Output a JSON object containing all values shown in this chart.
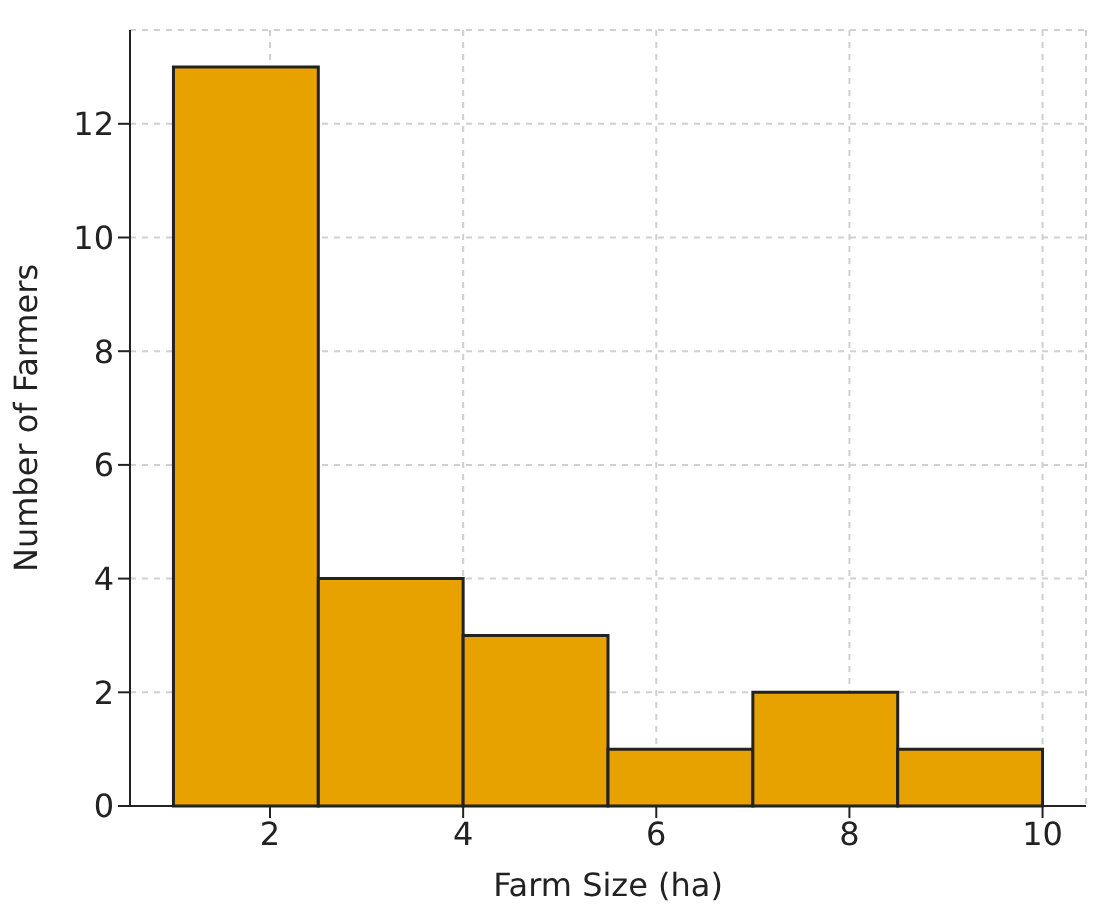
{
  "chart_data": {
    "type": "histogram",
    "xlabel": "Farm Size (ha)",
    "ylabel": "Number of Farmers",
    "bins": [
      1,
      2.5,
      4,
      5.5,
      7,
      8.5,
      10
    ],
    "values": [
      13,
      4,
      3,
      1,
      2,
      1
    ],
    "color": "#e8a200",
    "xlim": [
      0.55,
      10.45
    ],
    "xticks": [
      2,
      4,
      6,
      8,
      10
    ],
    "ylim": [
      0,
      13.65
    ],
    "yticks": [
      0,
      2,
      4,
      6,
      8,
      10,
      12
    ],
    "grid": true
  }
}
